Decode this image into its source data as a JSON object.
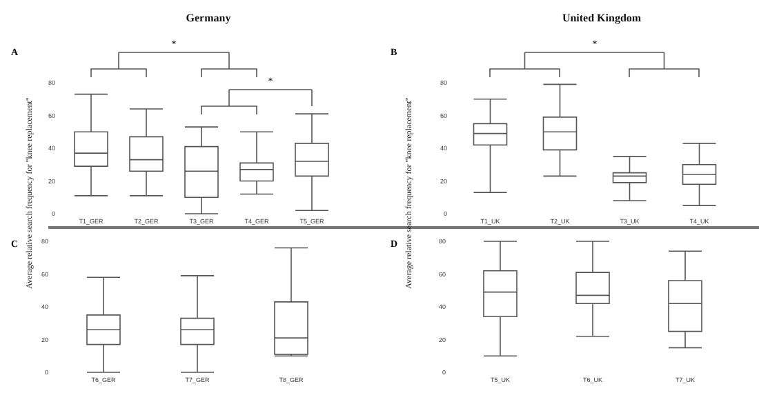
{
  "chart_data": [
    {
      "type": "box",
      "title": "Germany",
      "ylabel": "Average relative search frequency for \"knee replacement\"",
      "annotations": [
        "A",
        "*",
        "*"
      ],
      "categories": [
        "T1_GER",
        "T2_GER",
        "T3_GER",
        "T4_GER",
        "T5_GER"
      ],
      "color": "#555555",
      "ylim": [
        0,
        80
      ],
      "yticks": [
        0,
        20,
        40,
        60,
        80
      ],
      "grid": false,
      "boxes": [
        {
          "low": 11,
          "q1": 29,
          "median": 37,
          "q3": 50,
          "high": 73
        },
        {
          "low": 11,
          "q1": 26,
          "median": 33,
          "q3": 47,
          "high": 64
        },
        {
          "low": 0,
          "q1": 10,
          "median": 26,
          "q3": 41,
          "high": 53
        },
        {
          "low": 12,
          "q1": 20,
          "median": 27,
          "q3": 31,
          "high": 50
        },
        {
          "low": 2,
          "q1": 23,
          "median": 32,
          "q3": 43,
          "high": 61
        }
      ]
    },
    {
      "type": "box",
      "title": "United Kingdom",
      "ylabel": "Average relative search frequency for \"knee replacement\"",
      "annotations": [
        "B",
        "*"
      ],
      "categories": [
        "T1_UK",
        "T2_UK",
        "T3_UK",
        "T4_UK"
      ],
      "color": "#555555",
      "ylim": [
        0,
        80
      ],
      "yticks": [
        0,
        20,
        40,
        60,
        80
      ],
      "grid": false,
      "boxes": [
        {
          "low": 13,
          "q1": 42,
          "median": 49,
          "q3": 55,
          "high": 70
        },
        {
          "low": 23,
          "q1": 39,
          "median": 50,
          "q3": 59,
          "high": 79
        },
        {
          "low": 8,
          "q1": 19,
          "median": 23,
          "q3": 25,
          "high": 35
        },
        {
          "low": 5,
          "q1": 18,
          "median": 24,
          "q3": 30,
          "high": 43
        }
      ]
    },
    {
      "type": "box",
      "annotations": [
        "C"
      ],
      "categories": [
        "T6_GER",
        "T7_GER",
        "T8_GER"
      ],
      "color": "#555555",
      "ylim": [
        0,
        80
      ],
      "yticks": [
        0,
        20,
        40,
        60,
        80
      ],
      "grid": false,
      "boxes": [
        {
          "low": 0,
          "q1": 17,
          "median": 26,
          "q3": 35,
          "high": 58
        },
        {
          "low": 0,
          "q1": 17,
          "median": 26,
          "q3": 33,
          "high": 59
        },
        {
          "low": 10,
          "q1": 11,
          "median": 21,
          "q3": 43,
          "high": 76
        }
      ]
    },
    {
      "type": "box",
      "annotations": [
        "D"
      ],
      "categories": [
        "T5_UK",
        "T6_UK",
        "T7_UK"
      ],
      "color": "#555555",
      "ylim": [
        0,
        80
      ],
      "yticks": [
        0,
        20,
        40,
        60,
        80
      ],
      "grid": false,
      "boxes": [
        {
          "low": 10,
          "q1": 34,
          "median": 49,
          "q3": 62,
          "high": 80
        },
        {
          "low": 22,
          "q1": 42,
          "median": 47,
          "q3": 61,
          "high": 80
        },
        {
          "low": 15,
          "q1": 25,
          "median": 42,
          "q3": 56,
          "high": 74
        }
      ]
    }
  ]
}
